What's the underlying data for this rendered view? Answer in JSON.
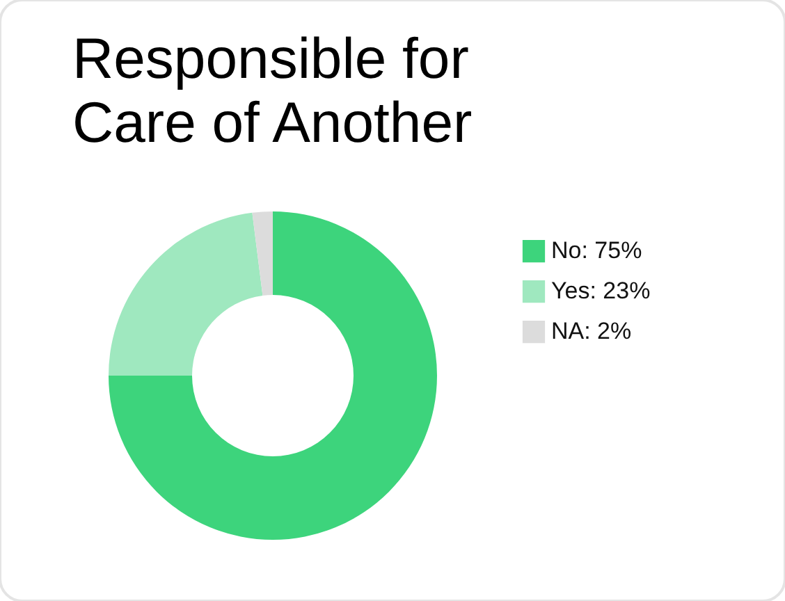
{
  "chart_data": {
    "type": "donut",
    "title": "Responsible for Care of Another",
    "categories": [
      "No: 75%",
      "Yes: 23%",
      "NA: 2%"
    ],
    "values": [
      75,
      23,
      2
    ],
    "colors": [
      "#3dd47c",
      "#9fe8bf",
      "#dcdcdc"
    ],
    "legend": "right"
  }
}
